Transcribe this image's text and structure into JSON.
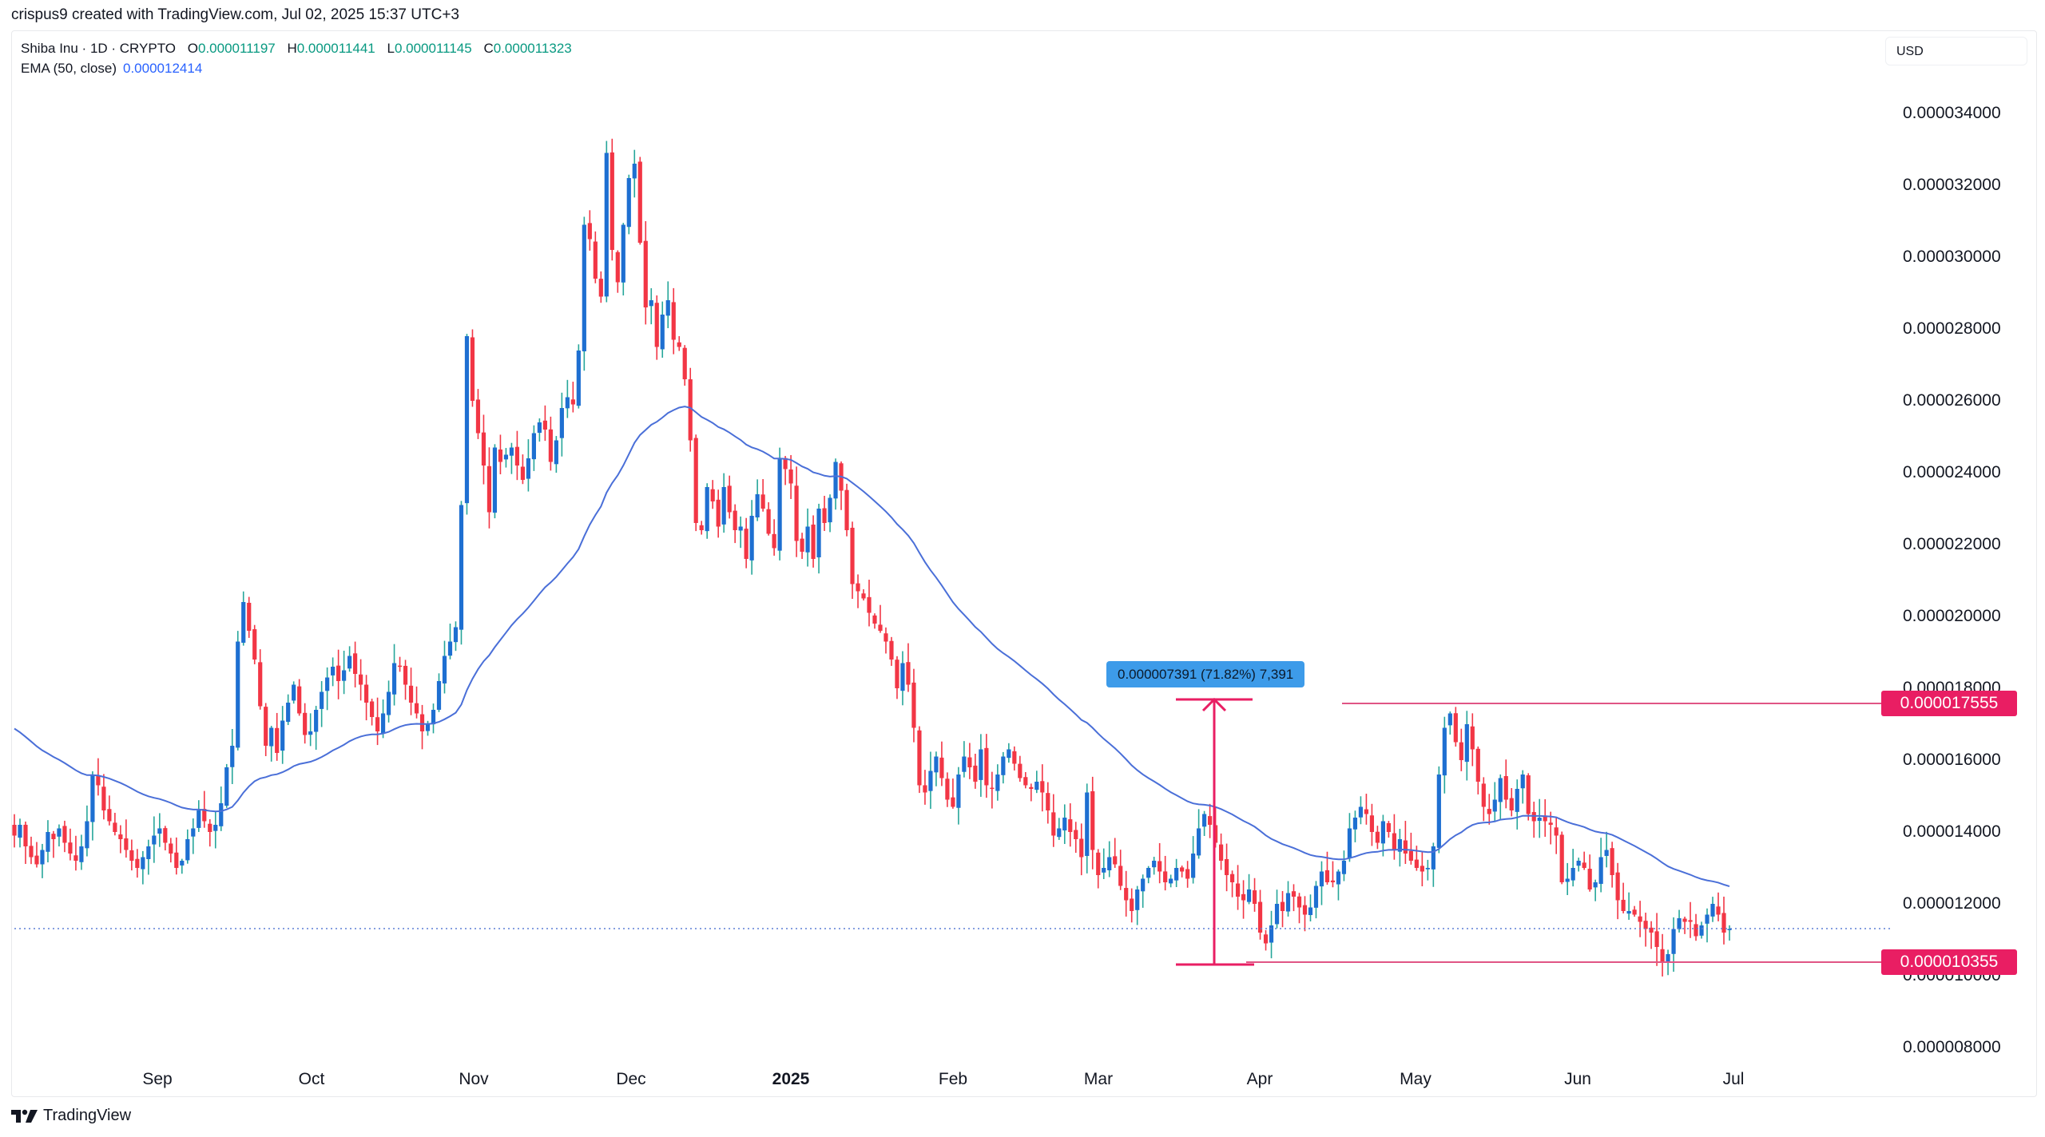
{
  "credit": "crispus9 created with TradingView.com, Jul 02, 2025 15:37 UTC+3",
  "legend": {
    "symbol": "Shiba Inu · 1D · CRYPTO",
    "o_label": "O",
    "o": "0.000011197",
    "h_label": "H",
    "h": "0.000011441",
    "l_label": "L",
    "l": "0.000011145",
    "c_label": "C",
    "c": "0.000011323",
    "ema_label": "EMA (50, close)",
    "ema": "0.000012414"
  },
  "currency": "USD",
  "footer": {
    "brand": "TradingView"
  },
  "colors": {
    "up_body": "#1e6fd1",
    "up_wick": "#26a69a",
    "down": "#f23645",
    "ema": "#4a6fd8",
    "level": "#e91e63",
    "tooltip": "#3d9be9",
    "last_price_dots": "#5b7fd6"
  },
  "chart_data": {
    "type": "candlestick",
    "title": "Shiba Inu · 1D · CRYPTO",
    "ylabel": "USD",
    "ylim": [
      7.5e-06,
      3.53e-05
    ],
    "yticks": [
      "0.000034000",
      "0.000032000",
      "0.000030000",
      "0.000028000",
      "0.000026000",
      "0.000024000",
      "0.000022000",
      "0.000020000",
      "0.000018000",
      "0.000016000",
      "0.000014000",
      "0.000012000",
      "0.000010000",
      "0.000008000"
    ],
    "xticks": [
      {
        "label": "Sep",
        "bold": false
      },
      {
        "label": "Oct",
        "bold": false
      },
      {
        "label": "Nov",
        "bold": false
      },
      {
        "label": "Dec",
        "bold": false
      },
      {
        "label": "2025",
        "bold": true
      },
      {
        "label": "Feb",
        "bold": false
      },
      {
        "label": "Mar",
        "bold": false
      },
      {
        "label": "Apr",
        "bold": false
      },
      {
        "label": "May",
        "bold": false
      },
      {
        "label": "Jun",
        "bold": false
      },
      {
        "label": "Jul",
        "bold": false
      }
    ],
    "x_range": [
      "2024-08-04",
      "2025-07-02"
    ],
    "price_unit": "millionths of USD",
    "closes_approx": [
      13.9,
      14.2,
      13.6,
      13.3,
      13.1,
      13.5,
      14.0,
      13.8,
      14.1,
      13.7,
      13.4,
      13.2,
      13.6,
      14.3,
      15.6,
      15.3,
      14.6,
      14.3,
      14.0,
      13.8,
      13.5,
      13.2,
      13.0,
      13.3,
      13.6,
      13.9,
      14.1,
      13.7,
      13.4,
      13.0,
      13.2,
      13.8,
      14.1,
      14.6,
      14.3,
      14.0,
      14.2,
      14.8,
      15.8,
      16.4,
      19.3,
      20.4,
      19.6,
      18.8,
      17.5,
      16.4,
      16.9,
      16.2,
      17.1,
      17.6,
      18.1,
      17.3,
      16.7,
      16.8,
      17.4,
      17.9,
      18.3,
      18.6,
      18.2,
      18.5,
      18.9,
      18.4,
      18.1,
      17.6,
      17.2,
      16.8,
      17.3,
      17.9,
      18.7,
      18.6,
      18.1,
      17.6,
      17.3,
      16.8,
      17.0,
      17.4,
      18.2,
      18.9,
      19.3,
      19.7,
      23.1,
      27.8,
      26.0,
      25.1,
      24.2,
      22.9,
      24.7,
      24.3,
      24.5,
      24.7,
      24.2,
      23.8,
      24.4,
      25.1,
      25.4,
      25.2,
      24.3,
      24.9,
      25.8,
      26.1,
      25.9,
      27.4,
      30.9,
      30.5,
      29.4,
      28.9,
      32.9,
      30.2,
      29.3,
      30.9,
      32.2,
      32.6,
      30.4,
      28.6,
      28.8,
      27.5,
      28.4,
      28.8,
      27.7,
      27.5,
      26.6,
      24.9,
      22.6,
      22.4,
      23.6,
      23.2,
      22.5,
      23.6,
      22.9,
      22.4,
      22.5,
      21.6,
      22.8,
      23.4,
      23.0,
      22.3,
      21.9,
      24.4,
      24.1,
      23.7,
      22.1,
      21.8,
      22.5,
      21.6,
      23.0,
      22.6,
      23.3,
      24.3,
      23.5,
      22.4,
      20.9,
      20.7,
      20.5,
      20.1,
      19.8,
      19.6,
      19.3,
      18.8,
      18.0,
      18.7,
      18.1,
      16.9,
      15.3,
      15.1,
      15.7,
      16.1,
      15.5,
      14.9,
      14.7,
      15.6,
      16.1,
      15.8,
      15.4,
      16.3,
      15.3,
      15.2,
      15.6,
      16.1,
      16.3,
      15.9,
      15.5,
      15.3,
      15.2,
      15.4,
      15.1,
      14.6,
      13.9,
      14.1,
      14.4,
      14.0,
      13.8,
      13.3,
      15.1,
      13.5,
      12.8,
      13.0,
      13.3,
      13.1,
      12.5,
      12.1,
      11.8,
      12.4,
      12.7,
      13.0,
      13.2,
      12.9,
      12.6,
      12.7,
      13.0,
      12.9,
      12.7,
      13.4,
      14.1,
      14.5,
      14.2,
      13.7,
      13.2,
      12.8,
      12.6,
      12.2,
      12.1,
      12.4,
      12.0,
      11.2,
      10.9,
      11.4,
      12.0,
      11.8,
      12.3,
      12.2,
      11.9,
      11.7,
      11.9,
      12.5,
      12.9,
      12.6,
      12.6,
      12.9,
      13.2,
      14.1,
      14.4,
      14.7,
      14.5,
      14.0,
      13.7,
      14.3,
      14.0,
      13.5,
      13.8,
      13.4,
      13.2,
      13.0,
      12.9,
      13.0,
      13.6,
      15.6,
      16.9,
      17.3,
      16.5,
      16.0,
      17.0,
      16.3,
      15.4,
      14.7,
      14.5,
      14.9,
      15.5,
      14.9,
      14.6,
      15.2,
      15.6,
      14.5,
      14.3,
      14.4,
      14.3,
      14.2,
      13.9,
      12.6,
      12.7,
      13.0,
      13.2,
      13.0,
      12.4,
      12.6,
      13.3,
      13.5,
      12.8,
      12.1,
      11.8,
      11.8,
      11.7,
      11.5,
      11.3,
      11.2,
      10.8,
      10.4,
      10.6,
      11.3,
      11.6,
      11.5,
      11.5,
      11.1,
      11.4,
      11.7,
      12.0,
      11.7,
      11.2,
      11.3
    ]
  }
}
